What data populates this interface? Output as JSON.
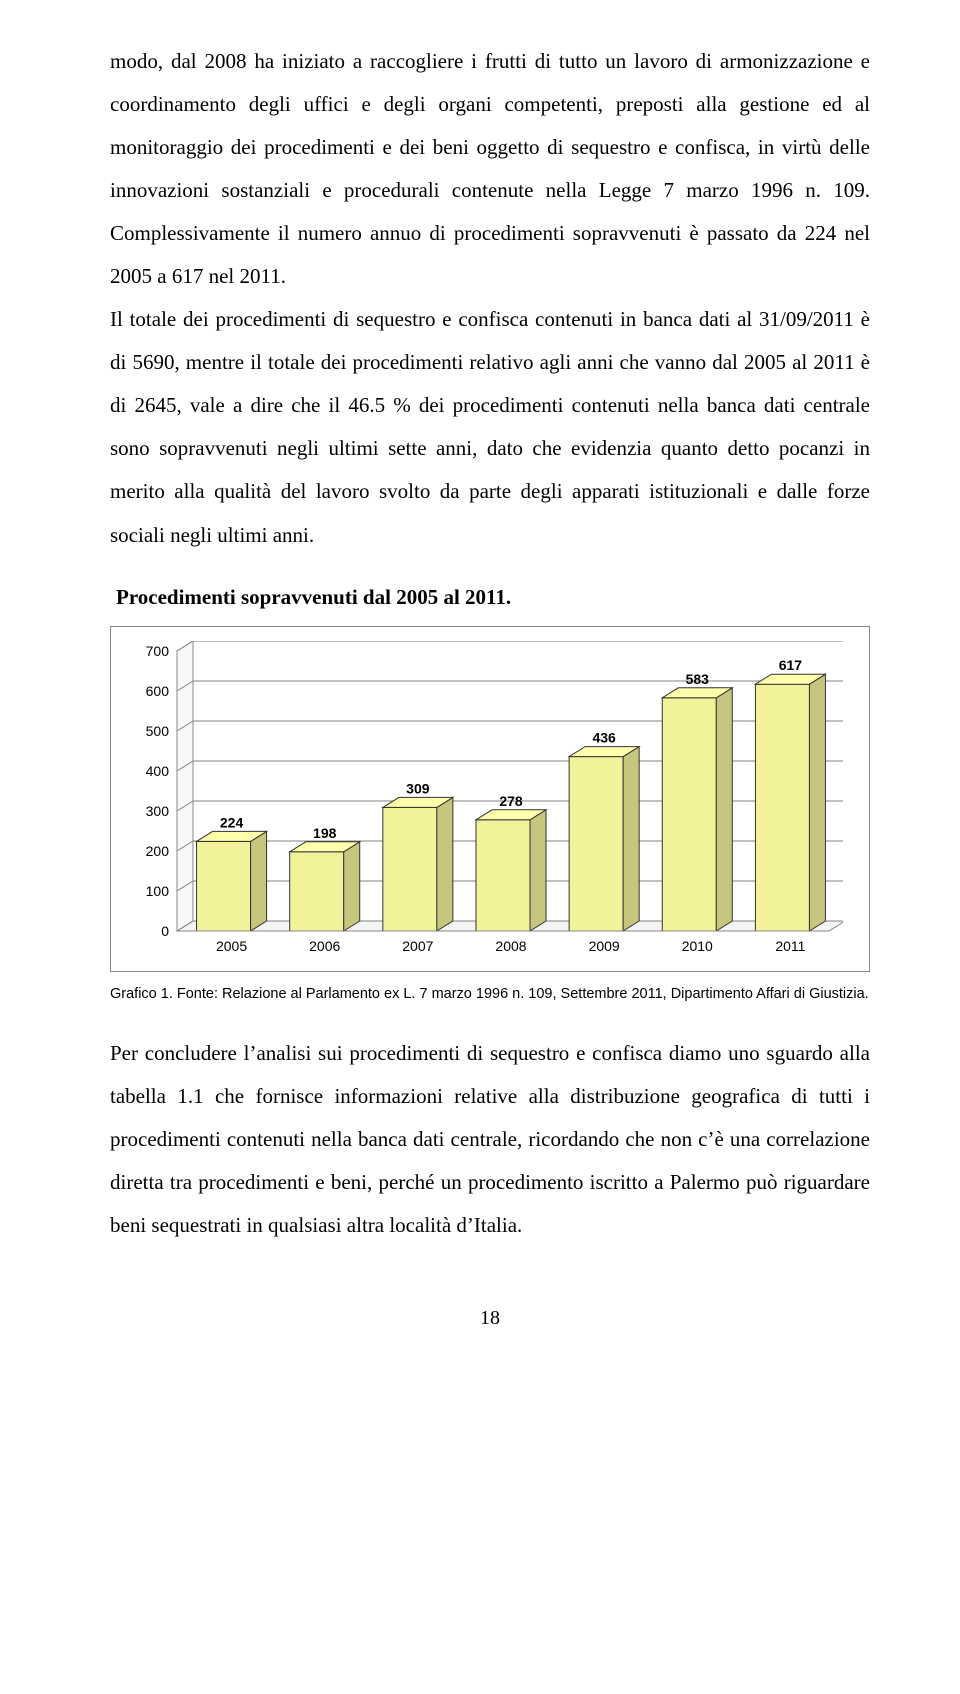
{
  "paragraphs": {
    "p1": "modo, dal 2008 ha iniziato a raccogliere i frutti di tutto un lavoro di armonizzazione e coordinamento degli uffici e degli organi competenti, preposti alla gestione ed al monitoraggio dei procedimenti e dei beni oggetto di sequestro e confisca, in virtù delle innovazioni sostanziali e procedurali contenute nella Legge 7 marzo 1996 n. 109. Complessivamente il numero annuo di procedimenti sopravvenuti è passato da 224 nel 2005 a 617 nel 2011.",
    "p2": "Il totale dei procedimenti di sequestro e confisca contenuti in banca dati al 31/09/2011 è di 5690, mentre il totale dei procedimenti relativo agli anni che vanno dal 2005 al 2011 è di 2645, vale a dire che il 46.5 % dei procedimenti contenuti nella banca dati centrale sono sopravvenuti negli ultimi sette anni, dato che evidenzia quanto detto pocanzi in merito alla qualità del lavoro svolto da parte degli apparati istituzionali e dalle forze sociali negli ultimi anni.",
    "p3": "Per concludere l’analisi sui procedimenti di sequestro e confisca diamo uno sguardo alla tabella 1.1 che fornisce informazioni relative alla distribuzione geografica di tutti i procedimenti contenuti nella banca dati centrale, ricordando che non c’è una correlazione diretta tra procedimenti e beni, perché un procedimento iscritto a Palermo può riguardare beni sequestrati in qualsiasi altra località d’Italia."
  },
  "chart": {
    "title": "Procedimenti sopravvenuti dal 2005 al 2011.",
    "type": "bar-3d",
    "categories": [
      "2005",
      "2006",
      "2007",
      "2008",
      "2009",
      "2010",
      "2011"
    ],
    "values": [
      224,
      198,
      309,
      278,
      436,
      583,
      617
    ],
    "bar_fill": "#f2f29a",
    "bar_stroke": "#333333",
    "background": "#ffffff",
    "plot_border": "#888888",
    "grid_color": "#808080",
    "ylim": [
      0,
      700
    ],
    "ytick_step": 100,
    "axis_font_family": "Arial, Helvetica, sans-serif",
    "axis_font_size": 14,
    "value_label_font_size": 14
  },
  "caption": "Grafico 1. Fonte: Relazione al Parlamento ex L. 7 marzo 1996 n. 109, Settembre 2011, Dipartimento Affari di Giustizia.",
  "page_number": "18"
}
